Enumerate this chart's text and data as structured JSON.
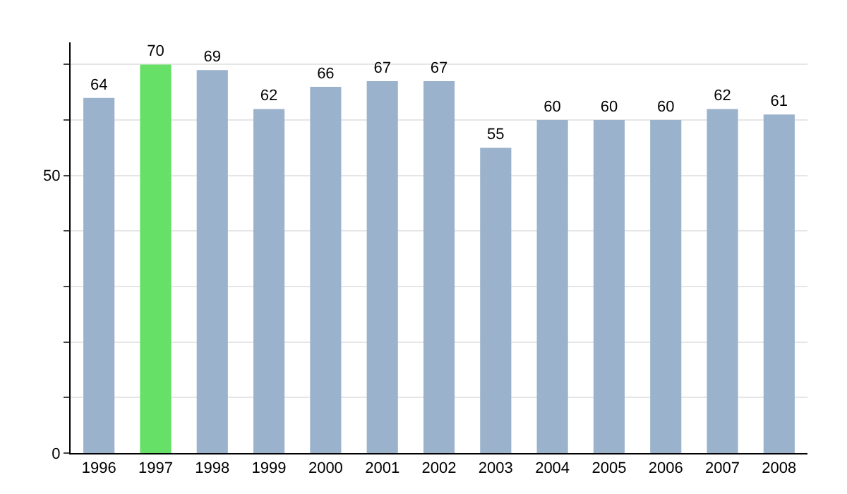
{
  "chart_data": {
    "type": "bar",
    "categories": [
      "1996",
      "1997",
      "1998",
      "1999",
      "2000",
      "2001",
      "2002",
      "2003",
      "2004",
      "2005",
      "2006",
      "2007",
      "2008"
    ],
    "values": [
      64,
      70,
      69,
      62,
      66,
      67,
      67,
      55,
      60,
      60,
      60,
      62,
      61
    ],
    "colors": [
      "#9bb2cc",
      "#66e066",
      "#9bb2cc",
      "#9bb2cc",
      "#9bb2cc",
      "#9bb2cc",
      "#9bb2cc",
      "#9bb2cc",
      "#9bb2cc",
      "#9bb2cc",
      "#9bb2cc",
      "#9bb2cc",
      "#9bb2cc"
    ],
    "ylim": [
      0,
      74
    ],
    "yticks": [
      0,
      {
        "value": 10,
        "label": null
      },
      {
        "value": 20,
        "label": null
      },
      {
        "value": 30,
        "label": null
      },
      {
        "value": 40,
        "label": null
      },
      50,
      {
        "value": 60,
        "label": null
      },
      {
        "value": 70,
        "label": null
      }
    ],
    "grid": "y",
    "data_labels": true
  }
}
